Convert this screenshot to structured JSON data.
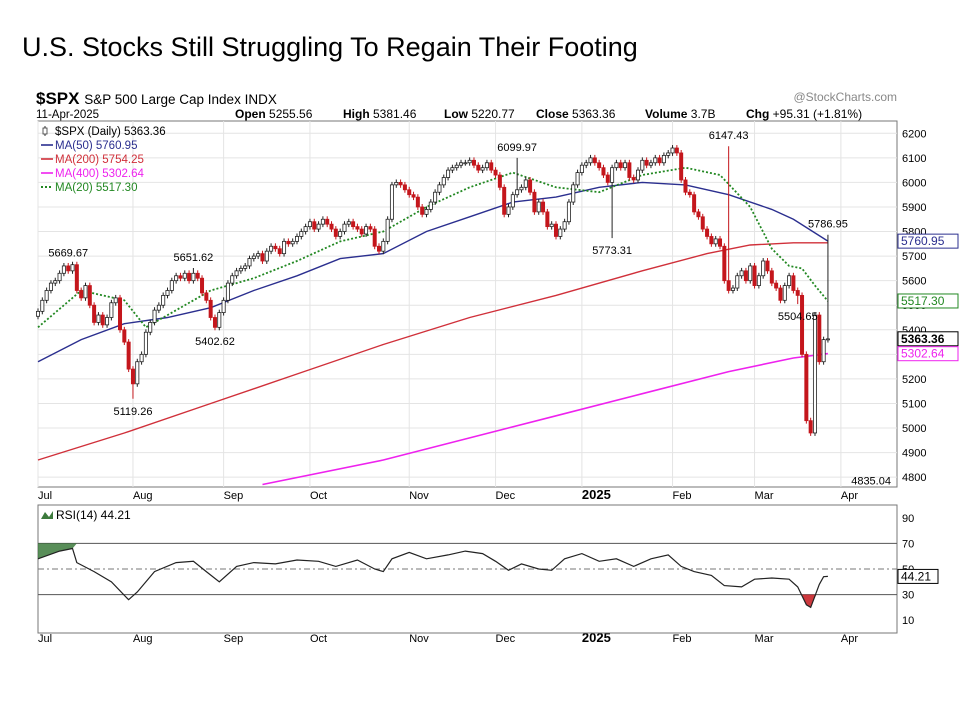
{
  "slide": {
    "title": "U.S. Stocks Still Struggling To Regain Their Footing"
  },
  "chart_data": {
    "type": "line",
    "symbol": "$SPX",
    "name": "S&P 500 Large Cap Index",
    "exchange": "INDX",
    "date": "11-Apr-2025",
    "watermark": "@StockCharts.com",
    "quote": {
      "open_label": "Open",
      "open": "5255.56",
      "high_label": "High",
      "high": "5381.46",
      "low_label": "Low",
      "low": "5220.77",
      "close_label": "Close",
      "close": "5363.36",
      "volume_label": "Volume",
      "volume": "3.7B",
      "chg_label": "Chg",
      "chg": "+95.31 (+1.81%)"
    },
    "legend": [
      {
        "label": "$SPX (Daily) 5363.36",
        "color": "#333333",
        "style": "candle"
      },
      {
        "label": "MA(50) 5760.95",
        "color": "#2b2f8f",
        "style": "solid"
      },
      {
        "label": "MA(200) 5754.25",
        "color": "#d0303a",
        "style": "solid"
      },
      {
        "label": "MA(400) 5302.64",
        "color": "#ee22ee",
        "style": "solid"
      },
      {
        "label": "MA(20) 5517.30",
        "color": "#228822",
        "style": "dotted"
      }
    ],
    "right_labels": [
      {
        "text": "5760.95",
        "value": 5760.95,
        "color": "#2b2f8f"
      },
      {
        "text": "5517.30",
        "value": 5517.3,
        "color": "#228822"
      },
      {
        "text": "5363.36",
        "value": 5363.36,
        "color": "#000000",
        "bold": true
      },
      {
        "text": "5302.64",
        "value": 5302.64,
        "color": "#ee22ee"
      }
    ],
    "y_ticks": [
      4800,
      4900,
      5000,
      5100,
      5200,
      5300,
      5400,
      5500,
      5600,
      5700,
      5800,
      5900,
      6000,
      6100,
      6200
    ],
    "ylim": [
      4760,
      6250
    ],
    "x_labels": [
      {
        "text": "Jul",
        "x": 0,
        "bold": false
      },
      {
        "text": "Aug",
        "x": 22,
        "bold": false
      },
      {
        "text": "Sep",
        "x": 43,
        "bold": false
      },
      {
        "text": "Oct",
        "x": 63,
        "bold": false
      },
      {
        "text": "Nov",
        "x": 86,
        "bold": false
      },
      {
        "text": "Dec",
        "x": 106,
        "bold": false
      },
      {
        "text": "2025",
        "x": 126,
        "bold": true
      },
      {
        "text": "Feb",
        "x": 147,
        "bold": false
      },
      {
        "text": "Mar",
        "x": 166,
        "bold": false
      },
      {
        "text": "Apr",
        "x": 186,
        "bold": false
      }
    ],
    "xlim": [
      0,
      199
    ],
    "annotations": [
      {
        "text": "5669.67",
        "x": 7,
        "y": 5670,
        "pos": "above"
      },
      {
        "text": "5119.26",
        "x": 22,
        "y": 5119.26,
        "pos": "below"
      },
      {
        "text": "5651.62",
        "x": 36,
        "y": 5651.62,
        "pos": "above"
      },
      {
        "text": "5402.62",
        "x": 41,
        "y": 5402.62,
        "pos": "below"
      },
      {
        "text": "6099.97",
        "x": 111,
        "y": 6099.97,
        "pos": "above"
      },
      {
        "text": "5773.31",
        "x": 133,
        "y": 5773.31,
        "pos": "below"
      },
      {
        "text": "6147.43",
        "x": 160,
        "y": 6147.43,
        "pos": "above"
      },
      {
        "text": "5504.65",
        "x": 176,
        "y": 5504.65,
        "pos": "below"
      },
      {
        "text": "5786.95",
        "x": 183,
        "y": 5786.95,
        "pos": "above"
      },
      {
        "text": "4835.04",
        "x": 193,
        "y": 4835.04,
        "pos": "below"
      }
    ],
    "closes": [
      [
        0,
        5475
      ],
      [
        1,
        5520
      ],
      [
        2,
        5560
      ],
      [
        3,
        5590
      ],
      [
        4,
        5600
      ],
      [
        5,
        5630
      ],
      [
        6,
        5660
      ],
      [
        7,
        5640
      ],
      [
        8,
        5665
      ],
      [
        9,
        5560
      ],
      [
        10,
        5530
      ],
      [
        11,
        5580
      ],
      [
        12,
        5500
      ],
      [
        13,
        5430
      ],
      [
        14,
        5460
      ],
      [
        15,
        5420
      ],
      [
        16,
        5450
      ],
      [
        17,
        5510
      ],
      [
        18,
        5530
      ],
      [
        19,
        5400
      ],
      [
        20,
        5350
      ],
      [
        21,
        5240
      ],
      [
        22,
        5180
      ],
      [
        23,
        5270
      ],
      [
        24,
        5300
      ],
      [
        25,
        5390
      ],
      [
        26,
        5430
      ],
      [
        27,
        5480
      ],
      [
        28,
        5500
      ],
      [
        29,
        5540
      ],
      [
        30,
        5560
      ],
      [
        31,
        5600
      ],
      [
        32,
        5620
      ],
      [
        33,
        5610
      ],
      [
        34,
        5630
      ],
      [
        35,
        5600
      ],
      [
        36,
        5630
      ],
      [
        37,
        5610
      ],
      [
        38,
        5550
      ],
      [
        39,
        5520
      ],
      [
        40,
        5450
      ],
      [
        41,
        5410
      ],
      [
        42,
        5470
      ],
      [
        43,
        5520
      ],
      [
        44,
        5590
      ],
      [
        45,
        5620
      ],
      [
        46,
        5640
      ],
      [
        47,
        5650
      ],
      [
        48,
        5660
      ],
      [
        49,
        5690
      ],
      [
        50,
        5700
      ],
      [
        51,
        5710
      ],
      [
        52,
        5680
      ],
      [
        53,
        5720
      ],
      [
        54,
        5740
      ],
      [
        55,
        5730
      ],
      [
        56,
        5710
      ],
      [
        57,
        5760
      ],
      [
        58,
        5750
      ],
      [
        59,
        5760
      ],
      [
        60,
        5780
      ],
      [
        61,
        5800
      ],
      [
        62,
        5820
      ],
      [
        63,
        5840
      ],
      [
        64,
        5810
      ],
      [
        65,
        5830
      ],
      [
        66,
        5850
      ],
      [
        67,
        5830
      ],
      [
        68,
        5810
      ],
      [
        69,
        5780
      ],
      [
        70,
        5800
      ],
      [
        71,
        5830
      ],
      [
        72,
        5840
      ],
      [
        73,
        5820
      ],
      [
        74,
        5810
      ],
      [
        75,
        5790
      ],
      [
        76,
        5820
      ],
      [
        77,
        5810
      ],
      [
        78,
        5740
      ],
      [
        79,
        5720
      ],
      [
        80,
        5760
      ],
      [
        81,
        5850
      ],
      [
        82,
        5990
      ],
      [
        83,
        6000
      ],
      [
        84,
        5990
      ],
      [
        85,
        5970
      ],
      [
        86,
        5950
      ],
      [
        87,
        5940
      ],
      [
        88,
        5900
      ],
      [
        89,
        5870
      ],
      [
        90,
        5890
      ],
      [
        91,
        5920
      ],
      [
        92,
        5960
      ],
      [
        93,
        5990
      ],
      [
        94,
        6020
      ],
      [
        95,
        6050
      ],
      [
        96,
        6060
      ],
      [
        97,
        6070
      ],
      [
        98,
        6080
      ],
      [
        99,
        6080
      ],
      [
        100,
        6090
      ],
      [
        101,
        6070
      ],
      [
        102,
        6050
      ],
      [
        103,
        6060
      ],
      [
        104,
        6080
      ],
      [
        105,
        6050
      ],
      [
        106,
        6030
      ],
      [
        107,
        5980
      ],
      [
        108,
        5870
      ],
      [
        109,
        5900
      ],
      [
        110,
        5950
      ],
      [
        111,
        5970
      ],
      [
        112,
        5980
      ],
      [
        113,
        6010
      ],
      [
        114,
        5960
      ],
      [
        115,
        5880
      ],
      [
        116,
        5920
      ],
      [
        117,
        5880
      ],
      [
        118,
        5820
      ],
      [
        119,
        5830
      ],
      [
        120,
        5780
      ],
      [
        121,
        5810
      ],
      [
        122,
        5840
      ],
      [
        123,
        5920
      ],
      [
        124,
        5990
      ],
      [
        125,
        6040
      ],
      [
        126,
        6070
      ],
      [
        127,
        6080
      ],
      [
        128,
        6100
      ],
      [
        129,
        6080
      ],
      [
        130,
        6060
      ],
      [
        131,
        6030
      ],
      [
        132,
        6000
      ],
      [
        133,
        6060
      ],
      [
        134,
        6080
      ],
      [
        135,
        6060
      ],
      [
        136,
        6080
      ],
      [
        137,
        6020
      ],
      [
        138,
        6010
      ],
      [
        139,
        6050
      ],
      [
        140,
        6090
      ],
      [
        141,
        6070
      ],
      [
        142,
        6080
      ],
      [
        143,
        6100
      ],
      [
        144,
        6080
      ],
      [
        145,
        6110
      ],
      [
        146,
        6120
      ],
      [
        147,
        6140
      ],
      [
        148,
        6120
      ],
      [
        149,
        6010
      ],
      [
        150,
        5960
      ],
      [
        151,
        5950
      ],
      [
        152,
        5880
      ],
      [
        153,
        5860
      ],
      [
        154,
        5810
      ],
      [
        155,
        5780
      ],
      [
        156,
        5750
      ],
      [
        157,
        5770
      ],
      [
        158,
        5740
      ],
      [
        159,
        5600
      ],
      [
        160,
        5560
      ],
      [
        161,
        5570
      ],
      [
        162,
        5620
      ],
      [
        163,
        5640
      ],
      [
        164,
        5600
      ],
      [
        165,
        5660
      ],
      [
        166,
        5580
      ],
      [
        167,
        5620
      ],
      [
        168,
        5680
      ],
      [
        169,
        5640
      ],
      [
        170,
        5590
      ],
      [
        171,
        5570
      ],
      [
        172,
        5520
      ],
      [
        173,
        5580
      ],
      [
        174,
        5620
      ],
      [
        175,
        5560
      ],
      [
        176,
        5540
      ],
      [
        177,
        5300
      ],
      [
        178,
        5030
      ],
      [
        179,
        4980
      ],
      [
        180,
        5460
      ],
      [
        181,
        5270
      ],
      [
        182,
        5360
      ],
      [
        183,
        5363
      ]
    ],
    "ma50": [
      [
        0,
        5270
      ],
      [
        10,
        5360
      ],
      [
        20,
        5425
      ],
      [
        30,
        5450
      ],
      [
        40,
        5490
      ],
      [
        50,
        5560
      ],
      [
        60,
        5620
      ],
      [
        70,
        5690
      ],
      [
        80,
        5710
      ],
      [
        90,
        5800
      ],
      [
        100,
        5860
      ],
      [
        110,
        5920
      ],
      [
        120,
        5940
      ],
      [
        130,
        5980
      ],
      [
        140,
        6000
      ],
      [
        150,
        5990
      ],
      [
        160,
        5950
      ],
      [
        170,
        5890
      ],
      [
        175,
        5850
      ],
      [
        183,
        5761
      ]
    ],
    "ma200": [
      [
        0,
        4870
      ],
      [
        20,
        4980
      ],
      [
        40,
        5100
      ],
      [
        60,
        5220
      ],
      [
        80,
        5340
      ],
      [
        100,
        5450
      ],
      [
        120,
        5540
      ],
      [
        140,
        5640
      ],
      [
        155,
        5710
      ],
      [
        165,
        5745
      ],
      [
        175,
        5754
      ],
      [
        183,
        5754
      ]
    ],
    "ma400": [
      [
        52,
        4770
      ],
      [
        80,
        4870
      ],
      [
        100,
        4960
      ],
      [
        120,
        5050
      ],
      [
        140,
        5140
      ],
      [
        160,
        5230
      ],
      [
        175,
        5285
      ],
      [
        183,
        5303
      ]
    ],
    "ma20": [
      [
        0,
        5410
      ],
      [
        10,
        5560
      ],
      [
        20,
        5520
      ],
      [
        25,
        5410
      ],
      [
        30,
        5460
      ],
      [
        40,
        5560
      ],
      [
        50,
        5610
      ],
      [
        60,
        5680
      ],
      [
        70,
        5760
      ],
      [
        80,
        5800
      ],
      [
        90,
        5900
      ],
      [
        100,
        5980
      ],
      [
        110,
        6040
      ],
      [
        120,
        5980
      ],
      [
        130,
        5960
      ],
      [
        140,
        6030
      ],
      [
        150,
        6060
      ],
      [
        158,
        6030
      ],
      [
        165,
        5900
      ],
      [
        170,
        5730
      ],
      [
        174,
        5660
      ],
      [
        177,
        5650
      ],
      [
        180,
        5580
      ],
      [
        183,
        5517
      ]
    ],
    "rsi": {
      "label": "RSI(14) 44.21",
      "ticks": [
        10,
        30,
        50,
        70,
        90
      ],
      "ylim": [
        0,
        100
      ],
      "current": "44.21",
      "levels": [
        70,
        30
      ],
      "values": [
        [
          0,
          58
        ],
        [
          5,
          64
        ],
        [
          8,
          66
        ],
        [
          9,
          55
        ],
        [
          13,
          48
        ],
        [
          17,
          40
        ],
        [
          21,
          26
        ],
        [
          23,
          32
        ],
        [
          27,
          48
        ],
        [
          32,
          55
        ],
        [
          36,
          56
        ],
        [
          39,
          48
        ],
        [
          42,
          40
        ],
        [
          46,
          52
        ],
        [
          50,
          55
        ],
        [
          55,
          54
        ],
        [
          60,
          57
        ],
        [
          65,
          56
        ],
        [
          69,
          52
        ],
        [
          74,
          57
        ],
        [
          78,
          50
        ],
        [
          80,
          48
        ],
        [
          82,
          58
        ],
        [
          86,
          63
        ],
        [
          90,
          58
        ],
        [
          95,
          61
        ],
        [
          99,
          64
        ],
        [
          103,
          62
        ],
        [
          106,
          56
        ],
        [
          109,
          49
        ],
        [
          112,
          54
        ],
        [
          116,
          50
        ],
        [
          119,
          49
        ],
        [
          122,
          58
        ],
        [
          126,
          62
        ],
        [
          130,
          56
        ],
        [
          134,
          58
        ],
        [
          138,
          52
        ],
        [
          142,
          58
        ],
        [
          146,
          61
        ],
        [
          149,
          52
        ],
        [
          152,
          48
        ],
        [
          156,
          45
        ],
        [
          159,
          37
        ],
        [
          163,
          36
        ],
        [
          166,
          42
        ],
        [
          170,
          43
        ],
        [
          174,
          42
        ],
        [
          176,
          36
        ],
        [
          178,
          22
        ],
        [
          179,
          20
        ],
        [
          181,
          38
        ],
        [
          182,
          44
        ],
        [
          183,
          44.21
        ]
      ]
    }
  }
}
